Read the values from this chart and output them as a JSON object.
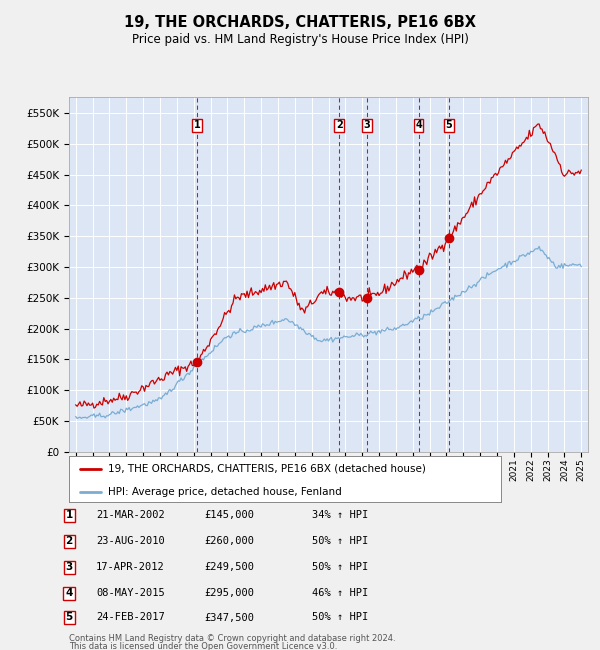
{
  "title": "19, THE ORCHARDS, CHATTERIS, PE16 6BX",
  "subtitle": "Price paid vs. HM Land Registry's House Price Index (HPI)",
  "legend_line1": "19, THE ORCHARDS, CHATTERIS, PE16 6BX (detached house)",
  "legend_line2": "HPI: Average price, detached house, Fenland",
  "footer_line1": "Contains HM Land Registry data © Crown copyright and database right 2024.",
  "footer_line2": "This data is licensed under the Open Government Licence v3.0.",
  "transactions": [
    {
      "num": 1,
      "date": "21-MAR-2002",
      "price": 145000,
      "pct": "34%",
      "dir": "↑",
      "year": 2002.2
    },
    {
      "num": 2,
      "date": "23-AUG-2010",
      "price": 260000,
      "pct": "50%",
      "dir": "↑",
      "year": 2010.64
    },
    {
      "num": 3,
      "date": "17-APR-2012",
      "price": 249500,
      "pct": "50%",
      "dir": "↑",
      "year": 2012.29
    },
    {
      "num": 4,
      "date": "08-MAY-2015",
      "price": 295000,
      "pct": "46%",
      "dir": "↑",
      "year": 2015.35
    },
    {
      "num": 5,
      "date": "24-FEB-2017",
      "price": 347500,
      "pct": "50%",
      "dir": "↑",
      "year": 2017.15
    }
  ],
  "red_line_color": "#cc0000",
  "blue_line_color": "#7aadd4",
  "plot_bg_color": "#dce6f5",
  "grid_color": "#ffffff",
  "dashed_color": "#cc0000",
  "marker_color": "#cc0000",
  "ylim": [
    0,
    575000
  ],
  "yticks": [
    0,
    50000,
    100000,
    150000,
    200000,
    250000,
    300000,
    350000,
    400000,
    450000,
    500000,
    550000
  ],
  "xlim_start": 1994.6,
  "xlim_end": 2025.4
}
